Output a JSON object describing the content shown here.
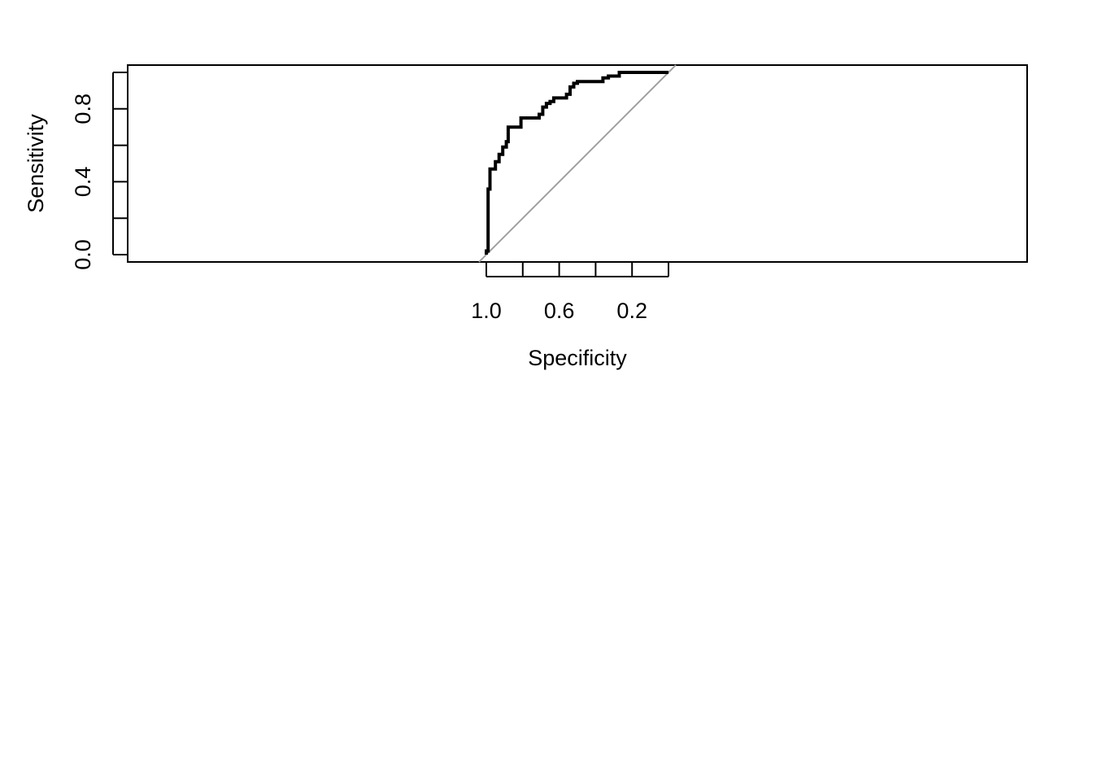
{
  "chart_data": {
    "type": "line",
    "title": "",
    "xlabel": "Specificity",
    "ylabel": "Sensitivity",
    "x_reversed": true,
    "xlim": [
      1.0,
      0.0
    ],
    "ylim": [
      0.0,
      1.0
    ],
    "x_ticks": [
      1.0,
      0.8,
      0.6,
      0.4,
      0.2,
      0.0
    ],
    "x_tick_labels": [
      "1.0",
      "",
      "0.6",
      "",
      "0.2",
      ""
    ],
    "y_ticks": [
      0.0,
      0.2,
      0.4,
      0.6,
      0.8,
      1.0
    ],
    "y_tick_labels": [
      "0.0",
      "",
      "0.4",
      "",
      "0.8",
      ""
    ],
    "grid": false,
    "legend": "none",
    "reference_line": {
      "from": [
        1.0,
        0.0
      ],
      "to": [
        0.0,
        1.0
      ],
      "color": "#a0a0a0"
    },
    "series": [
      {
        "color": "#000000",
        "x": [
          1.0,
          1.0,
          0.99,
          0.99,
          0.98,
          0.98,
          0.95,
          0.95,
          0.93,
          0.93,
          0.91,
          0.91,
          0.89,
          0.89,
          0.88,
          0.88,
          0.86,
          0.86,
          0.81,
          0.81,
          0.71,
          0.71,
          0.69,
          0.69,
          0.67,
          0.67,
          0.65,
          0.65,
          0.63,
          0.63,
          0.56,
          0.56,
          0.54,
          0.54,
          0.52,
          0.52,
          0.5,
          0.5,
          0.36,
          0.36,
          0.33,
          0.33,
          0.27,
          0.27,
          0.0
        ],
        "y": [
          0.0,
          0.02,
          0.02,
          0.36,
          0.36,
          0.47,
          0.47,
          0.51,
          0.51,
          0.55,
          0.55,
          0.59,
          0.59,
          0.62,
          0.62,
          0.7,
          0.7,
          0.7,
          0.7,
          0.75,
          0.75,
          0.77,
          0.77,
          0.81,
          0.81,
          0.83,
          0.83,
          0.84,
          0.84,
          0.86,
          0.86,
          0.88,
          0.88,
          0.92,
          0.92,
          0.94,
          0.94,
          0.95,
          0.95,
          0.97,
          0.97,
          0.98,
          0.98,
          1.0,
          1.0
        ]
      }
    ]
  }
}
